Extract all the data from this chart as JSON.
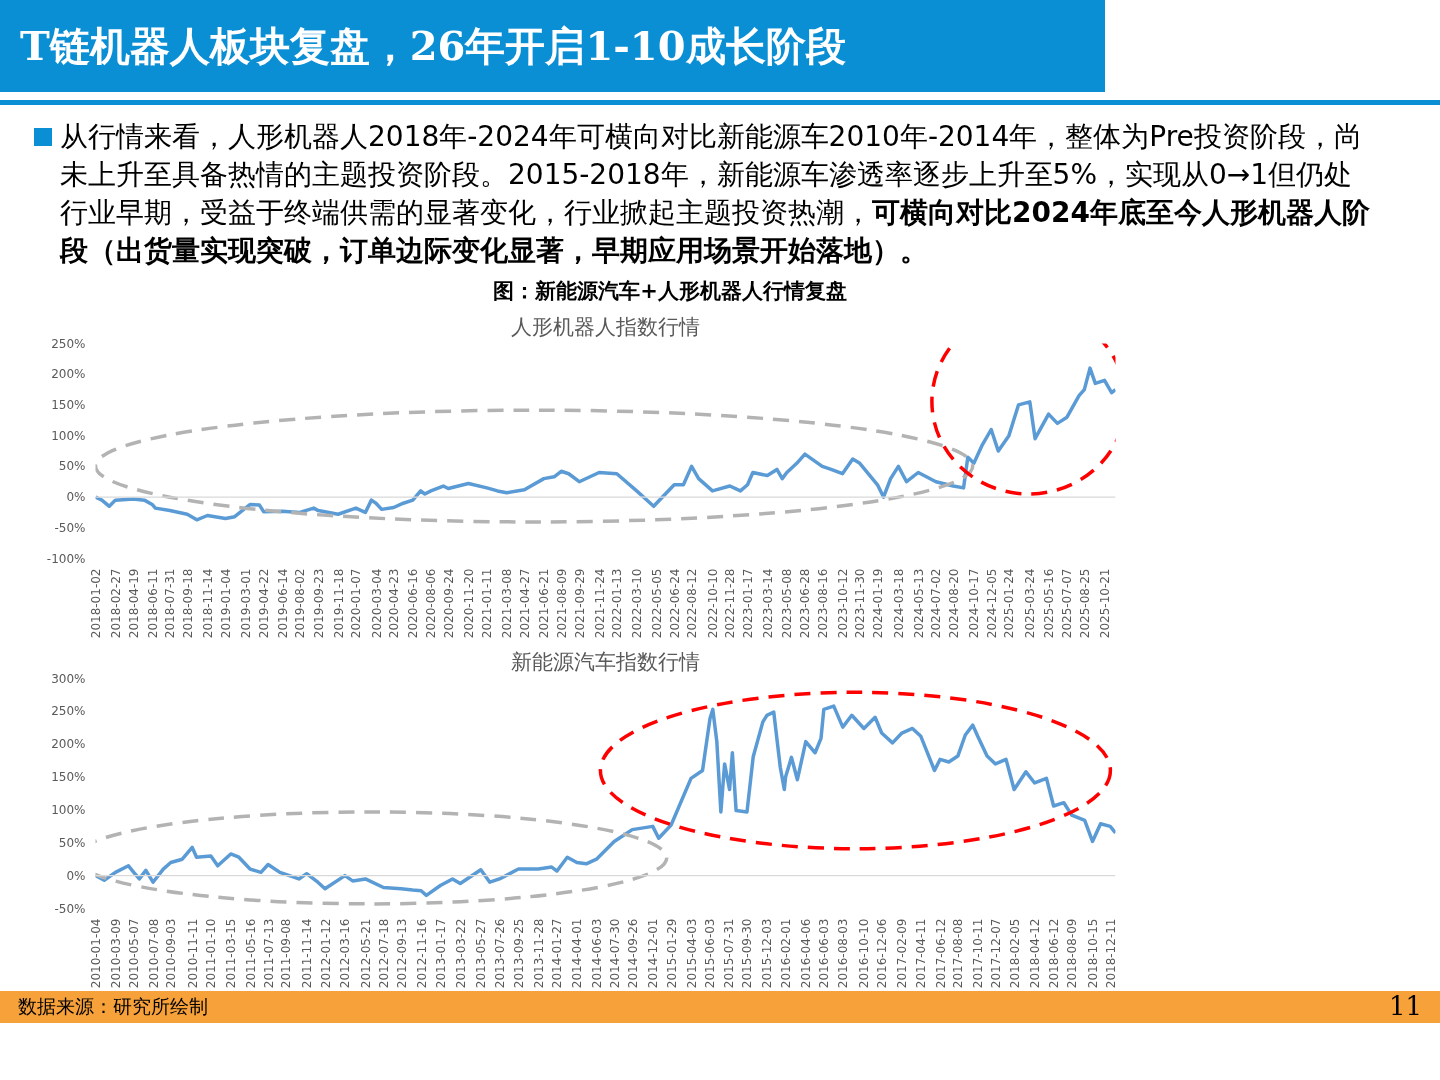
{
  "chart_data": [
    {
      "type": "other",
      "title": "T链机器人板块复盘，26年开启1-10成长阶段",
      "annotations": [
        "从行情来看，人形机器人2018年-2024年可横向对比新能源车2010年-2014年，整体为Pre投资阶段，尚未上升至具备热情的主题投资阶段。2015-2018年，新能源车渗透率逐步上升至5%，实现从0→1但仍处行业早期，受益于终端供需的显著变化，行业掀起主题投资热潮，",
        "可横向对比2024年底至今人形机器人阶段（出货量实现突破，订单边际变化显著，早期应用场景开始落地）。",
        "图：新能源汽车+人形机器人行情复盘",
        "数据来源：研究所绘制",
        "11"
      ]
    },
    {
      "type": "line",
      "title": "人形机器人指数行情",
      "xlim": [
        "2018-01-02",
        "2025-11-21"
      ],
      "ylim": [
        -100,
        250
      ],
      "yticks": [
        {
          "value": -100,
          "label": "-100%"
        },
        {
          "value": -50,
          "label": "-50%"
        },
        {
          "value": 0,
          "label": "0%"
        },
        {
          "value": 50,
          "label": "50%"
        },
        {
          "value": 100,
          "label": "100%"
        },
        {
          "value": 150,
          "label": "150%"
        },
        {
          "value": 200,
          "label": "200%"
        },
        {
          "value": 250,
          "label": "250%"
        }
      ],
      "xticks": [
        "2018-01-02",
        "2018-02-27",
        "2018-04-19",
        "2018-06-11",
        "2018-07-31",
        "2018-09-18",
        "2018-11-14",
        "2019-01-04",
        "2019-03-01",
        "2019-04-22",
        "2019-06-14",
        "2019-08-02",
        "2019-09-23",
        "2019-11-18",
        "2020-01-07",
        "2020-03-04",
        "2020-04-23",
        "2020-06-16",
        "2020-08-06",
        "2020-09-24",
        "2020-11-20",
        "2021-01-11",
        "2021-03-08",
        "2021-04-27",
        "2021-06-21",
        "2021-08-09",
        "2021-09-29",
        "2021-11-24",
        "2022-01-13",
        "2022-03-10",
        "2022-05-05",
        "2022-06-24",
        "2022-08-12",
        "2022-10-10",
        "2022-11-28",
        "2023-01-17",
        "2023-03-14",
        "2023-05-08",
        "2023-06-28",
        "2023-08-16",
        "2023-10-12",
        "2023-11-30",
        "2024-01-19",
        "2024-03-18",
        "2024-05-13",
        "2024-07-02",
        "2024-08-20",
        "2024-10-17",
        "2024-12-05",
        "2025-01-24",
        "2025-03-24",
        "2025-05-16",
        "2025-07-07",
        "2025-08-25",
        "2025-10-21"
      ],
      "ref_lines": [
        {
          "axis": "y",
          "value": 0,
          "color": "#d9d9d9"
        }
      ],
      "series": [
        {
          "color": "#5b9bd5",
          "x": [
            "2018-01-02",
            "2018-01-20",
            "2018-02-10",
            "2018-02-27",
            "2018-04-19",
            "2018-05-20",
            "2018-06-11",
            "2018-06-20",
            "2018-07-31",
            "2018-09-18",
            "2018-10-15",
            "2018-11-14",
            "2019-01-04",
            "2019-01-30",
            "2019-03-01",
            "2019-03-15",
            "2019-04-10",
            "2019-04-22",
            "2019-06-14",
            "2019-08-02",
            "2019-09-10",
            "2019-09-23",
            "2019-11-18",
            "2020-01-07",
            "2020-02-03",
            "2020-02-20",
            "2020-03-04",
            "2020-03-20",
            "2020-04-23",
            "2020-05-20",
            "2020-06-16",
            "2020-07-08",
            "2020-07-20",
            "2020-08-06",
            "2020-09-10",
            "2020-09-24",
            "2020-11-20",
            "2021-01-11",
            "2021-02-10",
            "2021-03-08",
            "2021-04-27",
            "2021-06-21",
            "2021-07-20",
            "2021-08-09",
            "2021-08-30",
            "2021-09-29",
            "2021-11-24",
            "2022-01-13",
            "2022-03-10",
            "2022-04-27",
            "2022-05-05",
            "2022-06-24",
            "2022-07-20",
            "2022-08-12",
            "2022-09-01",
            "2022-10-10",
            "2022-11-28",
            "2022-12-28",
            "2023-01-17",
            "2023-02-01",
            "2023-03-14",
            "2023-04-10",
            "2023-04-25",
            "2023-05-08",
            "2023-06-05",
            "2023-06-28",
            "2023-08-16",
            "2023-09-10",
            "2023-10-12",
            "2023-11-10",
            "2023-11-30",
            "2024-01-19",
            "2024-02-05",
            "2024-02-25",
            "2024-03-18",
            "2024-04-10",
            "2024-05-13",
            "2024-07-02",
            "2024-08-20",
            "2024-09-18",
            "2024-09-30",
            "2024-10-17",
            "2024-11-10",
            "2024-12-05",
            "2024-12-25",
            "2025-01-24",
            "2025-02-20",
            "2025-03-24",
            "2025-04-08",
            "2025-05-16",
            "2025-06-10",
            "2025-07-07",
            "2025-08-10",
            "2025-08-25",
            "2025-09-10",
            "2025-09-25",
            "2025-10-21",
            "2025-11-10",
            "2025-11-21"
          ],
          "values": [
            0,
            -5,
            -15,
            -5,
            -3,
            -5,
            -12,
            -18,
            -22,
            -28,
            -37,
            -30,
            -35,
            -32,
            -18,
            -12,
            -13,
            -24,
            -23,
            -25,
            -18,
            -22,
            -28,
            -18,
            -25,
            -5,
            -10,
            -20,
            -17,
            -10,
            -5,
            10,
            5,
            10,
            18,
            14,
            22,
            15,
            10,
            7,
            12,
            30,
            33,
            42,
            38,
            25,
            40,
            38,
            10,
            -15,
            -10,
            20,
            20,
            50,
            30,
            10,
            18,
            10,
            20,
            40,
            35,
            45,
            30,
            40,
            55,
            70,
            50,
            45,
            38,
            62,
            55,
            20,
            0,
            30,
            50,
            25,
            40,
            25,
            18,
            15,
            65,
            55,
            85,
            110,
            75,
            100,
            150,
            155,
            95,
            135,
            120,
            130,
            165,
            175,
            210,
            185,
            190,
            170,
            175
          ]
        }
      ]
    },
    {
      "type": "line",
      "title": "新能源汽车指数行情",
      "xlim": [
        "2010-01-04",
        "2018-12-28"
      ],
      "ylim": [
        -50,
        300
      ],
      "yticks": [
        {
          "value": -50,
          "label": "-50%"
        },
        {
          "value": 0,
          "label": "0%"
        },
        {
          "value": 50,
          "label": "50%"
        },
        {
          "value": 100,
          "label": "100%"
        },
        {
          "value": 150,
          "label": "150%"
        },
        {
          "value": 200,
          "label": "200%"
        },
        {
          "value": 250,
          "label": "250%"
        },
        {
          "value": 300,
          "label": "300%"
        }
      ],
      "xticks": [
        "2010-01-04",
        "2010-03-09",
        "2010-05-07",
        "2010-07-08",
        "2010-09-03",
        "2010-11-11",
        "2011-01-10",
        "2011-03-15",
        "2011-05-16",
        "2011-07-13",
        "2011-09-08",
        "2011-11-14",
        "2012-01-12",
        "2012-03-16",
        "2012-05-21",
        "2012-07-18",
        "2012-09-13",
        "2012-11-16",
        "2013-01-17",
        "2013-03-22",
        "2013-05-27",
        "2013-07-26",
        "2013-09-25",
        "2013-11-28",
        "2014-01-27",
        "2014-04-01",
        "2014-06-03",
        "2014-07-30",
        "2014-09-26",
        "2014-12-01",
        "2015-01-29",
        "2015-04-03",
        "2015-06-03",
        "2015-07-31",
        "2015-09-30",
        "2015-12-03",
        "2016-02-01",
        "2016-04-06",
        "2016-06-03",
        "2016-08-03",
        "2016-10-10",
        "2016-12-06",
        "2017-02-09",
        "2017-04-11",
        "2017-06-12",
        "2017-08-08",
        "2017-10-11",
        "2017-12-07",
        "2018-02-05",
        "2018-04-12",
        "2018-06-12",
        "2018-08-09",
        "2018-10-15",
        "2018-12-11"
      ],
      "ref_lines": [
        {
          "axis": "y",
          "value": 0,
          "color": "#d9d9d9"
        }
      ],
      "series": [
        {
          "color": "#5b9bd5",
          "x": [
            "2010-01-04",
            "2010-02-01",
            "2010-03-09",
            "2010-04-20",
            "2010-05-07",
            "2010-05-25",
            "2010-06-15",
            "2010-07-08",
            "2010-08-10",
            "2010-09-03",
            "2010-10-10",
            "2010-11-11",
            "2010-11-25",
            "2011-01-10",
            "2011-02-01",
            "2011-03-15",
            "2011-04-10",
            "2011-05-16",
            "2011-06-20",
            "2011-07-13",
            "2011-08-20",
            "2011-09-08",
            "2011-10-20",
            "2011-11-14",
            "2011-12-20",
            "2012-01-12",
            "2012-03-16",
            "2012-04-10",
            "2012-05-21",
            "2012-07-18",
            "2012-09-13",
            "2012-10-20",
            "2012-11-16",
            "2012-12-03",
            "2013-01-17",
            "2013-02-25",
            "2013-03-22",
            "2013-05-27",
            "2013-06-25",
            "2013-07-26",
            "2013-09-25",
            "2013-11-28",
            "2014-01-10",
            "2014-01-27",
            "2014-03-01",
            "2014-04-01",
            "2014-05-01",
            "2014-06-03",
            "2014-07-30",
            "2014-09-26",
            "2014-12-01",
            "2014-12-20",
            "2015-01-29",
            "2015-04-03",
            "2015-05-10",
            "2015-06-03",
            "2015-06-12",
            "2015-06-25",
            "2015-07-08",
            "2015-07-20",
            "2015-08-05",
            "2015-08-14",
            "2015-08-26",
            "2015-09-30",
            "2015-10-20",
            "2015-11-20",
            "2015-12-03",
            "2015-12-25",
            "2016-01-15",
            "2016-01-28",
            "2016-02-01",
            "2016-02-20",
            "2016-03-10",
            "2016-04-06",
            "2016-05-06",
            "2016-05-25",
            "2016-06-03",
            "2016-07-05",
            "2016-08-03",
            "2016-09-01",
            "2016-10-10",
            "2016-11-15",
            "2016-12-06",
            "2017-01-10",
            "2017-02-09",
            "2017-03-15",
            "2017-04-11",
            "2017-05-25",
            "2017-06-12",
            "2017-07-10",
            "2017-08-08",
            "2017-09-01",
            "2017-09-25",
            "2017-10-11",
            "2017-11-10",
            "2017-12-07",
            "2018-01-10",
            "2018-02-05",
            "2018-03-15",
            "2018-04-12",
            "2018-05-20",
            "2018-06-12",
            "2018-07-15",
            "2018-08-09",
            "2018-09-20",
            "2018-10-15",
            "2018-11-10",
            "2018-12-11",
            "2018-12-28"
          ],
          "values": [
            0,
            -7,
            5,
            15,
            5,
            -5,
            8,
            -10,
            10,
            20,
            25,
            43,
            28,
            30,
            15,
            33,
            28,
            10,
            5,
            17,
            5,
            2,
            -5,
            3,
            -10,
            -20,
            0,
            -8,
            -5,
            -18,
            -20,
            -22,
            -23,
            -30,
            -15,
            -5,
            -12,
            9,
            -10,
            -5,
            10,
            10,
            13,
            7,
            28,
            20,
            18,
            25,
            52,
            70,
            75,
            57,
            77,
            148,
            160,
            239,
            253,
            204,
            97,
            170,
            131,
            187,
            99,
            97,
            181,
            234,
            244,
            249,
            165,
            131,
            150,
            180,
            146,
            204,
            187,
            209,
            253,
            258,
            226,
            244,
            224,
            241,
            217,
            202,
            217,
            224,
            212,
            160,
            177,
            173,
            182,
            214,
            229,
            212,
            182,
            170,
            177,
            131,
            158,
            141,
            148,
            106,
            111,
            92,
            84,
            52,
            79,
            75,
            65
          ]
        }
      ]
    }
  ]
}
